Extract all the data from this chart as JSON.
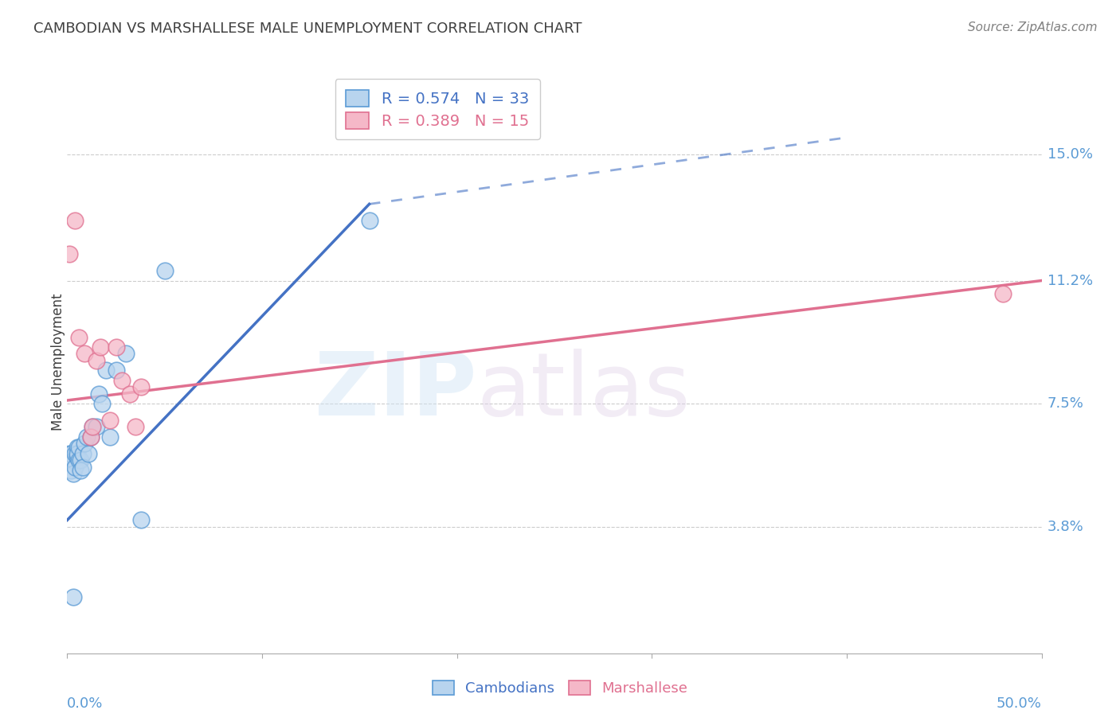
{
  "title": "CAMBODIAN VS MARSHALLESE MALE UNEMPLOYMENT CORRELATION CHART",
  "source": "Source: ZipAtlas.com",
  "ylabel": "Male Unemployment",
  "ytick_labels": [
    "3.8%",
    "7.5%",
    "11.2%",
    "15.0%"
  ],
  "ytick_values": [
    0.038,
    0.075,
    0.112,
    0.15
  ],
  "xlim": [
    0.0,
    0.5
  ],
  "ylim": [
    0.0,
    0.175
  ],
  "cambodian_fill": "#b8d4ee",
  "cambodian_edge": "#5b9bd5",
  "marshallese_fill": "#f5b8c8",
  "marshallese_edge": "#e07090",
  "trend_cambodian_color": "#4472c4",
  "trend_marshallese_color": "#e07090",
  "legend_text_cambodian": "#4472c4",
  "legend_text_marshallese": "#e07090",
  "label_color": "#5b9bd5",
  "title_color": "#404040",
  "source_color": "#808080",
  "ylabel_color": "#404040",
  "cambodian_x": [
    0.001,
    0.001,
    0.002,
    0.002,
    0.003,
    0.003,
    0.004,
    0.004,
    0.005,
    0.005,
    0.005,
    0.006,
    0.006,
    0.007,
    0.007,
    0.008,
    0.008,
    0.009,
    0.01,
    0.011,
    0.012,
    0.013,
    0.015,
    0.016,
    0.018,
    0.02,
    0.022,
    0.025,
    0.03,
    0.038,
    0.05,
    0.155,
    0.003
  ],
  "cambodian_y": [
    0.06,
    0.058,
    0.06,
    0.055,
    0.058,
    0.054,
    0.06,
    0.056,
    0.062,
    0.059,
    0.06,
    0.058,
    0.062,
    0.058,
    0.055,
    0.06,
    0.056,
    0.063,
    0.065,
    0.06,
    0.065,
    0.068,
    0.068,
    0.078,
    0.075,
    0.085,
    0.065,
    0.085,
    0.09,
    0.04,
    0.115,
    0.13,
    0.017
  ],
  "marshallese_x": [
    0.001,
    0.004,
    0.006,
    0.009,
    0.012,
    0.013,
    0.015,
    0.017,
    0.022,
    0.025,
    0.028,
    0.032,
    0.035,
    0.038,
    0.48
  ],
  "marshallese_y": [
    0.12,
    0.13,
    0.095,
    0.09,
    0.065,
    0.068,
    0.088,
    0.092,
    0.07,
    0.092,
    0.082,
    0.078,
    0.068,
    0.08,
    0.108
  ],
  "cam_trend_x0": 0.0,
  "cam_trend_y0": 0.04,
  "cam_trend_x1": 0.155,
  "cam_trend_y1": 0.135,
  "cam_trend_dash_x0": 0.155,
  "cam_trend_dash_y0": 0.135,
  "cam_trend_dash_x1": 0.4,
  "cam_trend_dash_y1": 0.155,
  "marsh_trend_x0": 0.0,
  "marsh_trend_y0": 0.076,
  "marsh_trend_x1": 0.5,
  "marsh_trend_y1": 0.112
}
